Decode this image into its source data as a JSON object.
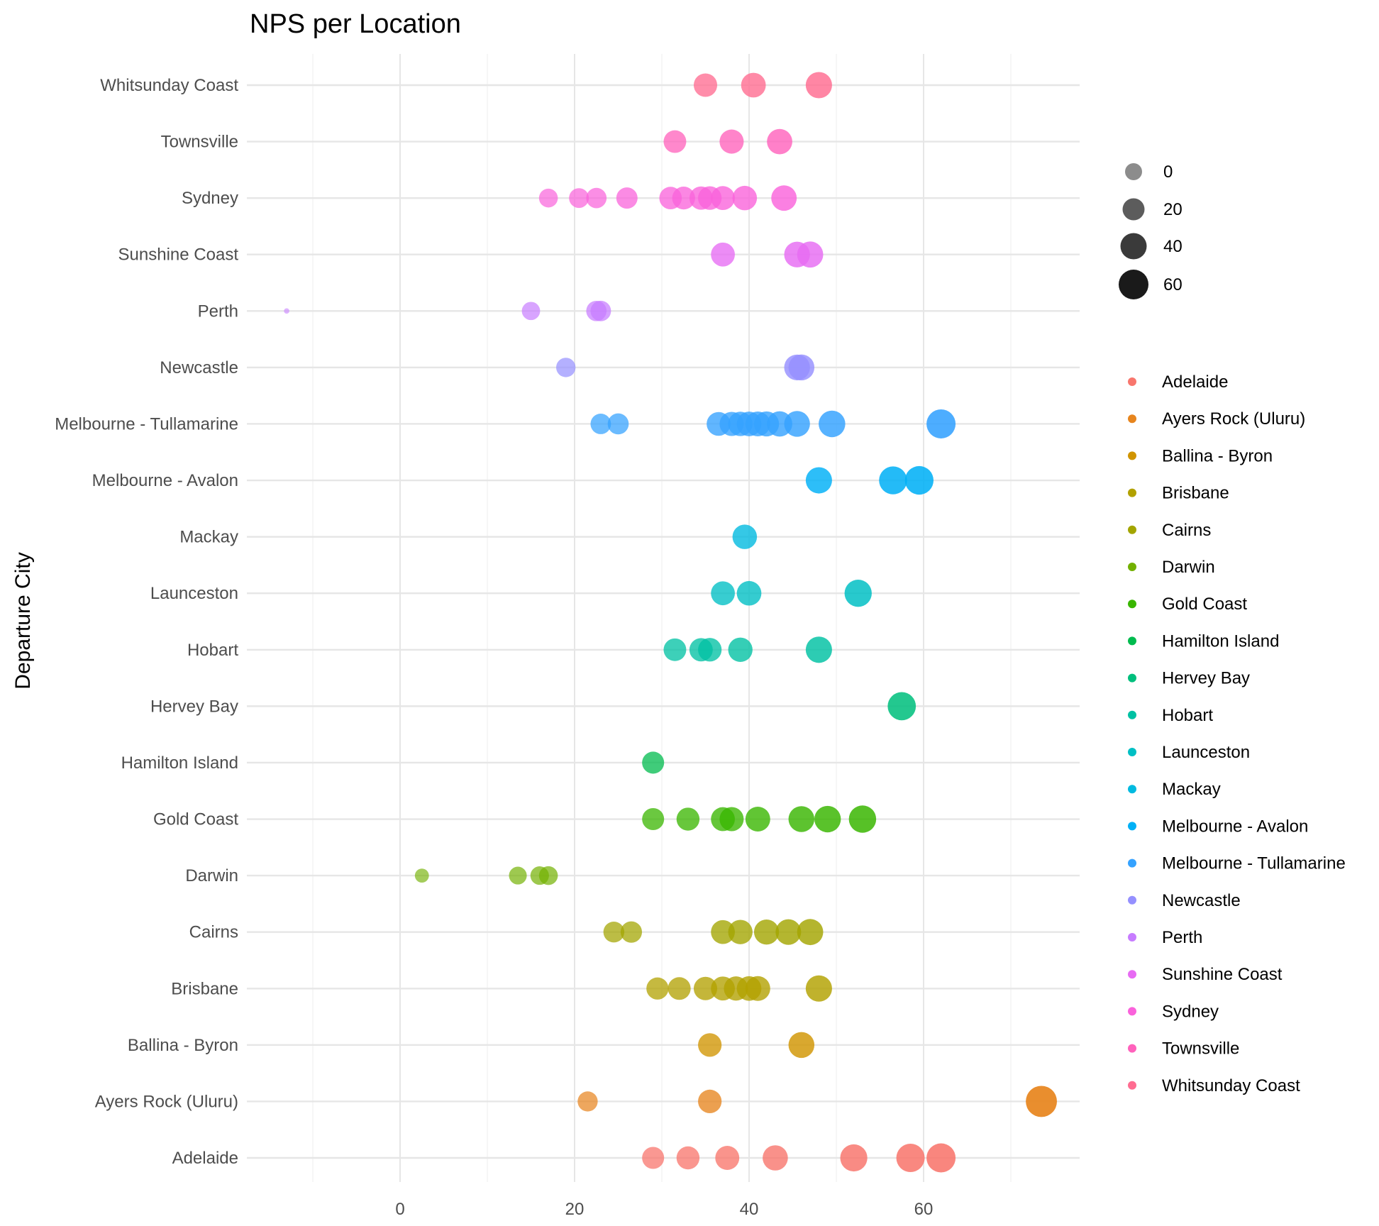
{
  "chart_data": {
    "type": "scatter",
    "title": "NPS per Location",
    "xlabel": "",
    "ylabel": "Departure City",
    "xlim": [
      -17,
      78
    ],
    "x_ticks": [
      0,
      20,
      40,
      60
    ],
    "grid": true,
    "legend_position": "right",
    "size_legend": {
      "title": "",
      "values": [
        0,
        20,
        40,
        60
      ]
    },
    "categories": [
      "Adelaide",
      "Ayers Rock (Uluru)",
      "Ballina - Byron",
      "Brisbane",
      "Cairns",
      "Darwin",
      "Gold Coast",
      "Hamilton Island",
      "Hervey Bay",
      "Hobart",
      "Launceston",
      "Mackay",
      "Melbourne - Avalon",
      "Melbourne - Tullamarine",
      "Newcastle",
      "Perth",
      "Sunshine Coast",
      "Sydney",
      "Townsville",
      "Whitsunday Coast"
    ],
    "series": [
      {
        "name": "Adelaide",
        "color": "#F8766D",
        "values": [
          29,
          33,
          37.5,
          43,
          52,
          58.5,
          62
        ]
      },
      {
        "name": "Ayers Rock (Uluru)",
        "color": "#E7851E",
        "values": [
          21.5,
          35.5,
          73.5
        ]
      },
      {
        "name": "Ballina - Byron",
        "color": "#D09400",
        "values": [
          35.5,
          46
        ]
      },
      {
        "name": "Brisbane",
        "color": "#B2A100",
        "values": [
          29.5,
          32,
          35,
          37,
          38.5,
          40,
          41,
          48
        ]
      },
      {
        "name": "Cairns",
        "color": "#A3A500",
        "values": [
          24.5,
          26.5,
          37,
          39,
          42,
          44.5,
          47
        ]
      },
      {
        "name": "Darwin",
        "color": "#72B000",
        "values": [
          2.5,
          13.5,
          16,
          17
        ]
      },
      {
        "name": "Gold Coast",
        "color": "#39B600",
        "values": [
          29,
          33,
          37,
          38,
          41,
          46,
          49,
          53
        ]
      },
      {
        "name": "Hamilton Island",
        "color": "#00BB4E",
        "values": [
          29
        ]
      },
      {
        "name": "Hervey Bay",
        "color": "#00BF7D",
        "values": [
          57.5
        ]
      },
      {
        "name": "Hobart",
        "color": "#00C1A3",
        "values": [
          31.5,
          34.5,
          35.5,
          39,
          48
        ]
      },
      {
        "name": "Launceston",
        "color": "#00BFC4",
        "values": [
          37,
          40,
          52.5
        ]
      },
      {
        "name": "Mackay",
        "color": "#00BAE0",
        "values": [
          39.5
        ]
      },
      {
        "name": "Melbourne - Avalon",
        "color": "#00B0F6",
        "values": [
          48,
          56.5,
          59.5
        ]
      },
      {
        "name": "Melbourne - Tullamarine",
        "color": "#35A2FF",
        "values": [
          23,
          25,
          36.5,
          38,
          39,
          40,
          41,
          42,
          43.5,
          45.5,
          49.5,
          62
        ]
      },
      {
        "name": "Newcastle",
        "color": "#9590FF",
        "values": [
          19,
          45.5,
          46
        ]
      },
      {
        "name": "Perth",
        "color": "#C77CFF",
        "values": [
          -13,
          15,
          22.5,
          23
        ]
      },
      {
        "name": "Sunshine Coast",
        "color": "#E76BF3",
        "values": [
          37,
          45.5,
          47
        ]
      },
      {
        "name": "Sydney",
        "color": "#FA62DB",
        "values": [
          17,
          20.5,
          22.5,
          26,
          31,
          32.5,
          34.5,
          35.5,
          37,
          39.5,
          44
        ]
      },
      {
        "name": "Townsville",
        "color": "#FF62BC",
        "values": [
          31.5,
          38,
          43.5
        ]
      },
      {
        "name": "Whitsunday Coast",
        "color": "#FF6C91",
        "values": [
          35,
          40.5,
          48
        ]
      }
    ]
  }
}
